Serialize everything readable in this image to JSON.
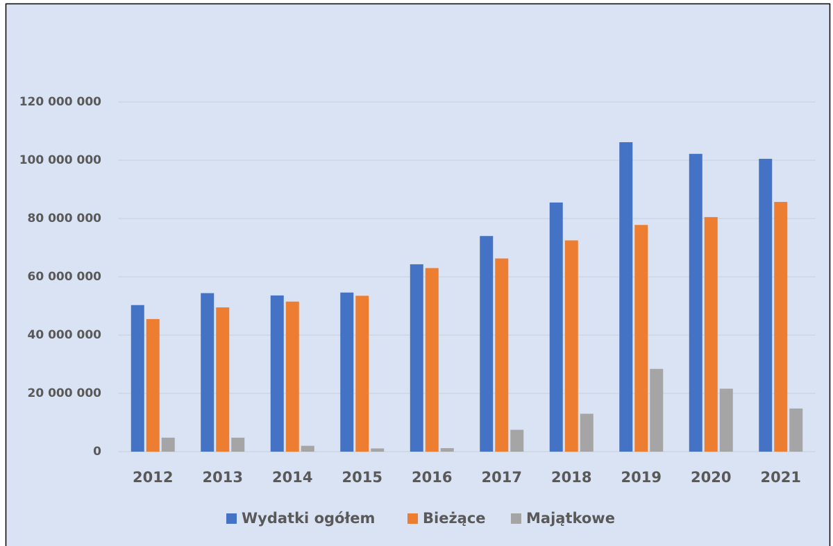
{
  "chart_data": {
    "type": "bar",
    "categories": [
      "2012",
      "2013",
      "2014",
      "2015",
      "2016",
      "2017",
      "2018",
      "2019",
      "2020",
      "2021"
    ],
    "series": [
      {
        "name": "Wydatki ogółem",
        "color": "#4472c4",
        "values": [
          50300000,
          54400000,
          53600000,
          54600000,
          64300000,
          74000000,
          85500000,
          106200000,
          102200000,
          100500000
        ]
      },
      {
        "name": "Bieżące",
        "color": "#ed7d31",
        "values": [
          45500000,
          49500000,
          51500000,
          53500000,
          63000000,
          66300000,
          72500000,
          77800000,
          80500000,
          85700000
        ]
      },
      {
        "name": "Majątkowe",
        "color": "#a5a5a5",
        "values": [
          4800000,
          4800000,
          2000000,
          1100000,
          1200000,
          7500000,
          13000000,
          28400000,
          21600000,
          14800000
        ]
      }
    ],
    "ylim": [
      0,
      120000000
    ],
    "yticks": [
      0,
      {
        "value": 20000000,
        "label": "20 000 000"
      },
      {
        "value": 40000000,
        "label": "40 000 000"
      },
      {
        "value": 60000000,
        "label": "60 000 000"
      },
      {
        "value": 80000000,
        "label": "80 000 000"
      },
      {
        "value": 100000000,
        "label": "100 000 000"
      },
      {
        "value": 120000000,
        "label": "120 000 000"
      }
    ],
    "grid": true,
    "legend": "bottom"
  }
}
